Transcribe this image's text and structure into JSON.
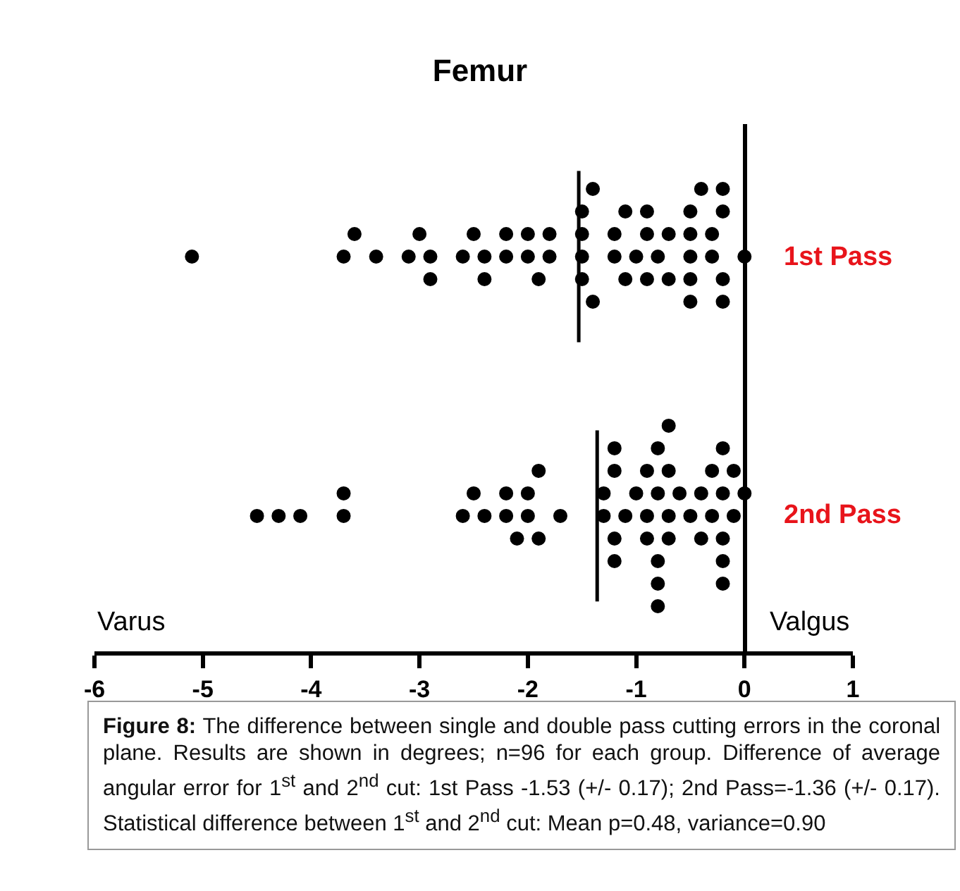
{
  "chart_data": {
    "type": "scatter",
    "orientation": "horizontal",
    "title": "Femur",
    "categories": [
      "1st Pass",
      "2nd Pass"
    ],
    "xlim": [
      -6,
      1
    ],
    "xticks": [
      -6,
      -5,
      -4,
      -3,
      -2,
      -1,
      0,
      1
    ],
    "grid": false,
    "marker": "circle",
    "series": [
      {
        "type": "scatter",
        "color": "#000000",
        "x": [
          "1st Pass",
          "1st Pass",
          "1st Pass",
          "1st Pass",
          "1st Pass",
          "1st Pass",
          "1st Pass",
          "1st Pass",
          "1st Pass",
          "1st Pass",
          "1st Pass",
          "1st Pass",
          "1st Pass",
          "1st Pass",
          "1st Pass",
          "1st Pass",
          "1st Pass",
          "1st Pass",
          "1st Pass",
          "1st Pass",
          "1st Pass",
          "1st Pass",
          "1st Pass",
          "1st Pass",
          "1st Pass",
          "1st Pass",
          "1st Pass",
          "1st Pass",
          "1st Pass",
          "1st Pass",
          "1st Pass",
          "1st Pass",
          "1st Pass",
          "1st Pass",
          "1st Pass",
          "1st Pass",
          "1st Pass",
          "1st Pass",
          "1st Pass",
          "1st Pass",
          "1st Pass",
          "1st Pass",
          "1st Pass",
          "1st Pass",
          "1st Pass",
          "1st Pass",
          "1st Pass",
          "1st Pass",
          "1st Pass"
        ],
        "values": [
          -5.1,
          -3.7,
          -3.6,
          -3.4,
          -3.1,
          -3.0,
          -2.9,
          -2.9,
          -2.6,
          -2.5,
          -2.4,
          -2.4,
          -2.2,
          -2.2,
          -2.0,
          -2.0,
          -1.9,
          -1.8,
          -1.8,
          -1.5,
          -1.5,
          -1.5,
          -1.5,
          -1.4,
          -1.4,
          -1.2,
          -1.2,
          -1.1,
          -1.1,
          -1.0,
          -0.9,
          -0.9,
          -0.9,
          -0.8,
          -0.7,
          -0.7,
          -0.5,
          -0.5,
          -0.5,
          -0.5,
          -0.5,
          -0.4,
          -0.3,
          -0.3,
          -0.2,
          -0.2,
          -0.2,
          -0.2,
          0.0
        ]
      },
      {
        "type": "scatter",
        "color": "#000000",
        "x": [
          "2nd Pass",
          "2nd Pass",
          "2nd Pass",
          "2nd Pass",
          "2nd Pass",
          "2nd Pass",
          "2nd Pass",
          "2nd Pass",
          "2nd Pass",
          "2nd Pass",
          "2nd Pass",
          "2nd Pass",
          "2nd Pass",
          "2nd Pass",
          "2nd Pass",
          "2nd Pass",
          "2nd Pass",
          "2nd Pass",
          "2nd Pass",
          "2nd Pass",
          "2nd Pass",
          "2nd Pass",
          "2nd Pass",
          "2nd Pass",
          "2nd Pass",
          "2nd Pass",
          "2nd Pass",
          "2nd Pass",
          "2nd Pass",
          "2nd Pass",
          "2nd Pass",
          "2nd Pass",
          "2nd Pass",
          "2nd Pass",
          "2nd Pass",
          "2nd Pass",
          "2nd Pass",
          "2nd Pass",
          "2nd Pass",
          "2nd Pass",
          "2nd Pass",
          "2nd Pass",
          "2nd Pass",
          "2nd Pass",
          "2nd Pass",
          "2nd Pass",
          "2nd Pass",
          "2nd Pass",
          "2nd Pass",
          "2nd Pass"
        ],
        "values": [
          -4.5,
          -4.3,
          -4.1,
          -3.7,
          -3.7,
          -2.6,
          -2.5,
          -2.4,
          -2.2,
          -2.2,
          -2.1,
          -2.0,
          -2.0,
          -1.9,
          -1.9,
          -1.7,
          -1.3,
          -1.3,
          -1.2,
          -1.2,
          -1.2,
          -1.2,
          -1.1,
          -1.0,
          -0.9,
          -0.9,
          -0.9,
          -0.8,
          -0.8,
          -0.8,
          -0.8,
          -0.7,
          -0.7,
          -0.7,
          -0.7,
          -0.6,
          -0.5,
          -0.4,
          -0.4,
          -0.3,
          -0.3,
          -0.2,
          -0.2,
          -0.2,
          -0.2,
          -0.2,
          -0.1,
          -0.1,
          0.0,
          -0.8
        ]
      }
    ],
    "ref_lines": [
      {
        "axis": "x",
        "value": -1.53,
        "color": "#000000"
      },
      {
        "axis": "x",
        "value": -1.36,
        "color": "#000000"
      }
    ],
    "annotations": [
      "Varus",
      "Valgus",
      "Figure 8: The difference between single and double pass cutting errors in the coronal plane. Results are shown in degrees; n=96 for each group. Difference of average angular error for 1$^{st}$ and 2$^{nd}$ cut: 1st Pass -1.53 (+/- 0.17); 2nd Pass=-1.36 (+/- 0.17).  Statistical difference between 1$^{st}$ and 2$^{nd}$ cut: Mean p=0.48, variance=0.90"
    ]
  }
}
